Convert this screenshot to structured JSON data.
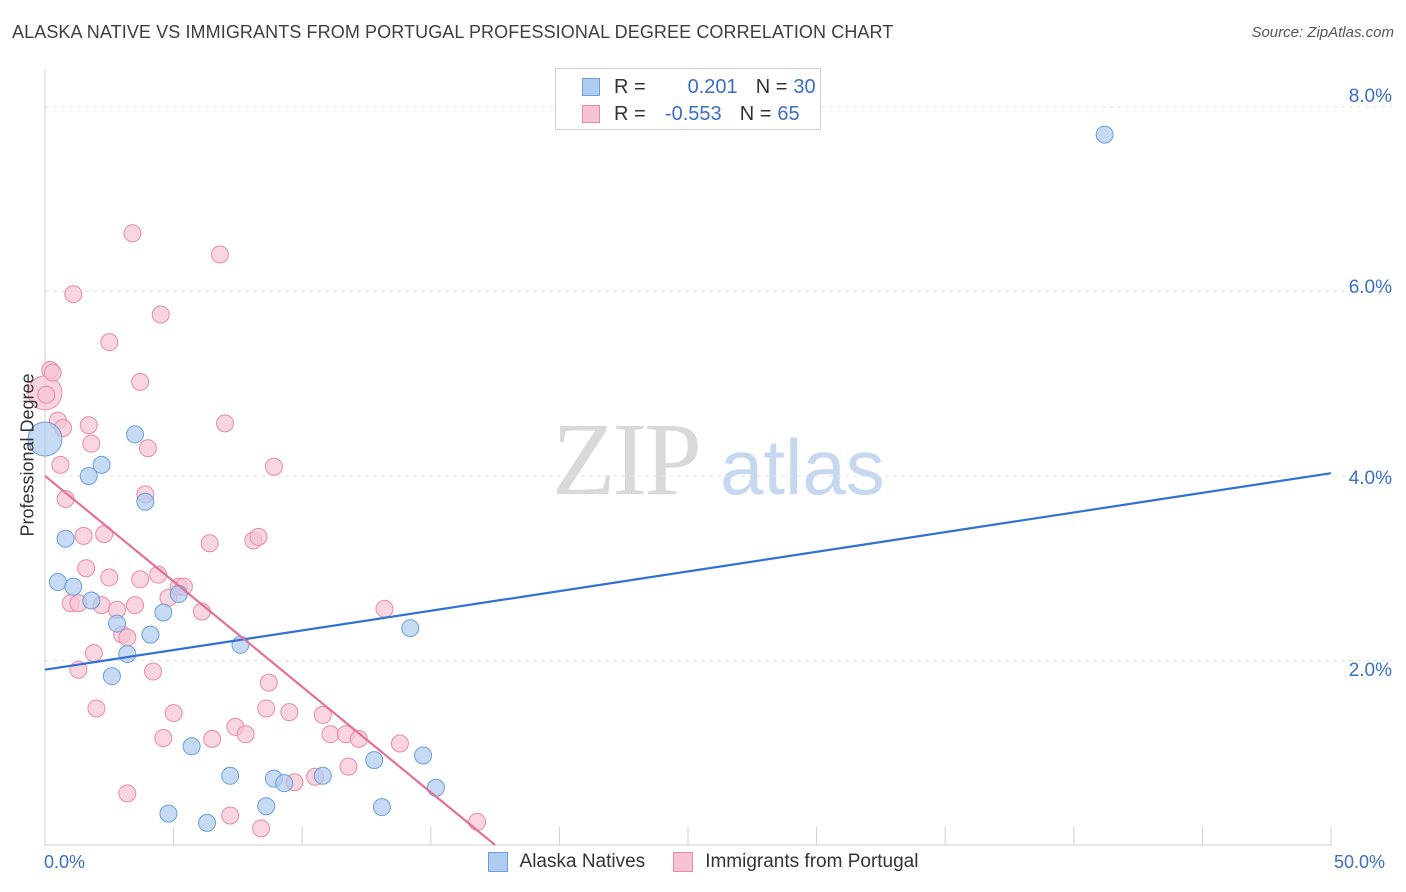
{
  "title": "ALASKA NATIVE VS IMMIGRANTS FROM PORTUGAL PROFESSIONAL DEGREE CORRELATION CHART",
  "source": "Source: ZipAtlas.com",
  "watermark": {
    "zip": "ZIP",
    "atlas": "atlas"
  },
  "legend_top": {
    "rows": [
      {
        "r_label": "R =",
        "r_value": "0.201",
        "n_label": "N =",
        "n_value": "30"
      },
      {
        "r_label": "R =",
        "r_value": "-0.553",
        "n_label": "N =",
        "n_value": "65"
      }
    ]
  },
  "colors": {
    "blue_fill": "#aecbf0",
    "blue_stroke": "#6b9fdc",
    "blue_line": "#2f72d4",
    "pink_fill": "#f7c3d3",
    "pink_stroke": "#e98aa9",
    "pink_line": "#e4709a",
    "tick_text": "#3a6fc7",
    "grid": "#e2e2e2"
  },
  "chart_data": {
    "type": "scatter",
    "title": "ALASKA NATIVE VS IMMIGRANTS FROM PORTUGAL PROFESSIONAL DEGREE CORRELATION CHART",
    "xlabel": "",
    "ylabel": "Professional Degree",
    "xlim": [
      0,
      50
    ],
    "ylim": [
      0,
      8.4
    ],
    "x_tick_labels": [
      "0.0%",
      "50.0%"
    ],
    "y_ticks": [
      2,
      4,
      6,
      8
    ],
    "y_tick_labels": [
      "2.0%",
      "4.0%",
      "6.0%",
      "8.0%"
    ],
    "grid": true,
    "legend_position": "bottom",
    "series": [
      {
        "name": "Alaska Natives",
        "r": 0.201,
        "n": 30,
        "trend": {
          "x0": 0,
          "y0": 1.9,
          "x1": 50,
          "y1": 4.03
        },
        "points": [
          [
            0.0,
            4.4
          ],
          [
            0.5,
            2.85
          ],
          [
            0.8,
            3.32
          ],
          [
            1.1,
            2.8
          ],
          [
            1.7,
            4.0
          ],
          [
            1.8,
            2.65
          ],
          [
            2.2,
            4.12
          ],
          [
            2.6,
            1.83
          ],
          [
            2.8,
            2.4
          ],
          [
            3.2,
            2.07
          ],
          [
            3.5,
            4.45
          ],
          [
            3.9,
            3.72
          ],
          [
            4.1,
            2.28
          ],
          [
            4.6,
            2.52
          ],
          [
            4.8,
            0.34
          ],
          [
            5.2,
            2.72
          ],
          [
            5.7,
            1.07
          ],
          [
            6.3,
            0.24
          ],
          [
            7.2,
            0.75
          ],
          [
            7.6,
            2.17
          ],
          [
            8.6,
            0.42
          ],
          [
            8.9,
            0.72
          ],
          [
            9.3,
            0.67
          ],
          [
            10.8,
            0.75
          ],
          [
            12.8,
            0.92
          ],
          [
            13.1,
            0.41
          ],
          [
            14.2,
            2.35
          ],
          [
            14.7,
            0.97
          ],
          [
            15.2,
            0.62
          ],
          [
            41.2,
            7.7
          ]
        ]
      },
      {
        "name": "Immigrants from Portugal",
        "r": -0.553,
        "n": 65,
        "trend": {
          "x0": 0,
          "y0": 4.0,
          "x1": 17.5,
          "y1": 0.0
        },
        "points": [
          [
            0.0,
            4.9
          ],
          [
            0.2,
            5.15
          ],
          [
            0.3,
            5.12
          ],
          [
            0.5,
            4.6
          ],
          [
            0.6,
            4.12
          ],
          [
            0.7,
            4.52
          ],
          [
            0.8,
            3.75
          ],
          [
            1.0,
            2.62
          ],
          [
            1.1,
            5.97
          ],
          [
            1.3,
            2.62
          ],
          [
            1.3,
            1.9
          ],
          [
            1.5,
            3.35
          ],
          [
            1.6,
            3.0
          ],
          [
            1.7,
            4.55
          ],
          [
            1.8,
            4.35
          ],
          [
            1.9,
            2.08
          ],
          [
            2.0,
            1.48
          ],
          [
            2.2,
            2.6
          ],
          [
            2.3,
            3.37
          ],
          [
            2.5,
            5.45
          ],
          [
            2.5,
            2.9
          ],
          [
            2.8,
            2.55
          ],
          [
            3.0,
            2.28
          ],
          [
            3.2,
            2.25
          ],
          [
            3.2,
            0.56
          ],
          [
            3.4,
            6.63
          ],
          [
            3.5,
            2.6
          ],
          [
            3.7,
            2.88
          ],
          [
            3.7,
            5.02
          ],
          [
            3.9,
            3.8
          ],
          [
            4.0,
            4.3
          ],
          [
            4.2,
            1.88
          ],
          [
            4.4,
            2.93
          ],
          [
            4.5,
            5.75
          ],
          [
            4.6,
            1.16
          ],
          [
            4.8,
            2.68
          ],
          [
            5.0,
            1.43
          ],
          [
            5.2,
            2.8
          ],
          [
            5.4,
            2.8
          ],
          [
            6.1,
            2.53
          ],
          [
            6.4,
            3.27
          ],
          [
            6.5,
            1.15
          ],
          [
            6.8,
            6.4
          ],
          [
            7.0,
            4.57
          ],
          [
            7.2,
            0.32
          ],
          [
            7.4,
            1.28
          ],
          [
            7.8,
            1.2
          ],
          [
            8.1,
            3.3
          ],
          [
            8.3,
            3.34
          ],
          [
            8.4,
            0.18
          ],
          [
            8.6,
            1.48
          ],
          [
            8.7,
            1.76
          ],
          [
            8.9,
            4.1
          ],
          [
            9.5,
            1.44
          ],
          [
            9.7,
            0.68
          ],
          [
            10.5,
            0.74
          ],
          [
            10.8,
            1.41
          ],
          [
            11.1,
            1.2
          ],
          [
            11.7,
            1.2
          ],
          [
            11.8,
            0.85
          ],
          [
            12.2,
            1.15
          ],
          [
            13.2,
            2.56
          ],
          [
            13.8,
            1.1
          ],
          [
            16.8,
            0.25
          ],
          [
            0.05,
            4.88
          ]
        ]
      }
    ]
  },
  "bottom_legend": [
    "Alaska Natives",
    "Immigrants from Portugal"
  ]
}
